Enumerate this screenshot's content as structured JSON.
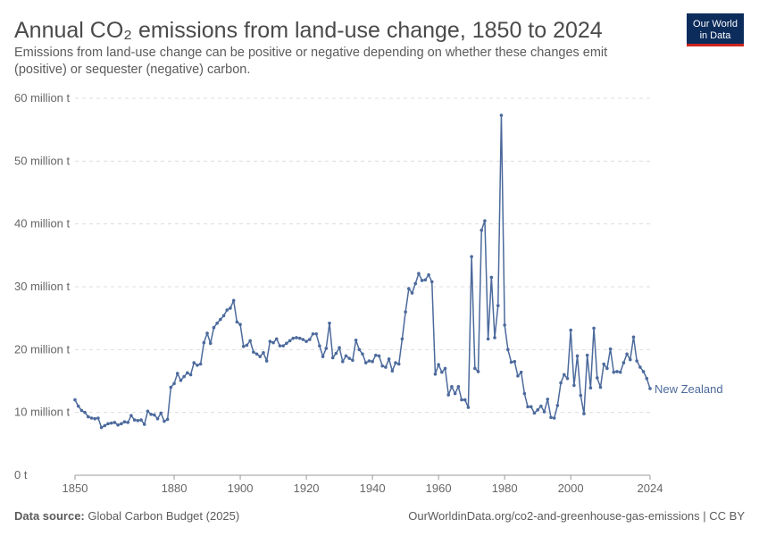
{
  "chart_data": {
    "type": "line",
    "title": "Annual CO₂ emissions from land-use change, 1850 to 2024",
    "subtitle": "Emissions from land-use change can be positive or negative depending on whether these changes emit (positive) or sequester (negative) carbon.",
    "source_label": "Data source:",
    "source": "Global Carbon Budget (2025)",
    "url": "OurWorldinData.org/co2-and-greenhouse-gas-emissions | CC BY",
    "logo": [
      "Our World",
      "in Data"
    ],
    "xlim": [
      1850,
      2024
    ],
    "xticks": [
      1850,
      1880,
      1900,
      1920,
      1940,
      1960,
      1980,
      2000,
      2024
    ],
    "ylim": [
      0,
      60
    ],
    "yticks": [
      {
        "value": 0,
        "label": "0 t"
      },
      {
        "value": 10,
        "label": "10 million t"
      },
      {
        "value": 20,
        "label": "20 million t"
      },
      {
        "value": 30,
        "label": "30 million t"
      },
      {
        "value": 40,
        "label": "40 million t"
      },
      {
        "value": 50,
        "label": "50 million t"
      },
      {
        "value": 60,
        "label": "60 million t"
      }
    ],
    "grid": true,
    "x": [
      1850,
      1851,
      1852,
      1853,
      1854,
      1855,
      1856,
      1857,
      1858,
      1859,
      1860,
      1861,
      1862,
      1863,
      1864,
      1865,
      1866,
      1867,
      1868,
      1869,
      1870,
      1871,
      1872,
      1873,
      1874,
      1875,
      1876,
      1877,
      1878,
      1879,
      1880,
      1881,
      1882,
      1883,
      1884,
      1885,
      1886,
      1887,
      1888,
      1889,
      1890,
      1891,
      1892,
      1893,
      1894,
      1895,
      1896,
      1897,
      1898,
      1899,
      1900,
      1901,
      1902,
      1903,
      1904,
      1905,
      1906,
      1907,
      1908,
      1909,
      1910,
      1911,
      1912,
      1913,
      1914,
      1915,
      1916,
      1917,
      1918,
      1919,
      1920,
      1921,
      1922,
      1923,
      1924,
      1925,
      1926,
      1927,
      1928,
      1929,
      1930,
      1931,
      1932,
      1933,
      1934,
      1935,
      1936,
      1937,
      1938,
      1939,
      1940,
      1941,
      1942,
      1943,
      1944,
      1945,
      1946,
      1947,
      1948,
      1949,
      1950,
      1951,
      1952,
      1953,
      1954,
      1955,
      1956,
      1957,
      1958,
      1959,
      1960,
      1961,
      1962,
      1963,
      1964,
      1965,
      1966,
      1967,
      1968,
      1969,
      1970,
      1971,
      1972,
      1973,
      1974,
      1975,
      1976,
      1977,
      1978,
      1979,
      1980,
      1981,
      1982,
      1983,
      1984,
      1985,
      1986,
      1987,
      1988,
      1989,
      1990,
      1991,
      1992,
      1993,
      1994,
      1995,
      1996,
      1997,
      1998,
      1999,
      2000,
      2001,
      2002,
      2003,
      2004,
      2005,
      2006,
      2007,
      2008,
      2009,
      2010,
      2011,
      2012,
      2013,
      2014,
      2015,
      2016,
      2017,
      2018,
      2019,
      2020,
      2021,
      2022,
      2023,
      2024
    ],
    "series": [
      {
        "name": "New Zealand",
        "color": "#4c6a9c",
        "values": [
          12.0,
          11.0,
          10.3,
          10.0,
          9.3,
          9.1,
          9.0,
          9.1,
          7.6,
          7.9,
          8.2,
          8.3,
          8.4,
          8.0,
          8.2,
          8.5,
          8.4,
          9.5,
          8.8,
          8.7,
          8.8,
          8.1,
          10.2,
          9.7,
          9.6,
          9.0,
          9.9,
          8.6,
          8.9,
          14.0,
          14.6,
          16.2,
          15.1,
          15.7,
          16.3,
          16.0,
          17.9,
          17.5,
          17.7,
          21.1,
          22.6,
          21.0,
          23.5,
          24.2,
          24.8,
          25.4,
          26.3,
          26.6,
          27.8,
          24.4,
          24.0,
          20.5,
          20.7,
          21.4,
          19.6,
          19.3,
          18.9,
          19.5,
          18.2,
          21.3,
          21.1,
          21.7,
          20.6,
          20.6,
          21.0,
          21.4,
          21.8,
          21.9,
          21.8,
          21.6,
          21.3,
          21.6,
          22.5,
          22.5,
          20.6,
          18.9,
          20.2,
          24.2,
          18.7,
          19.4,
          20.3,
          18.1,
          19.0,
          18.6,
          18.3,
          21.5,
          20.0,
          19.3,
          17.9,
          18.2,
          18.1,
          19.1,
          19.0,
          17.4,
          17.2,
          18.5,
          16.6,
          17.9,
          17.7,
          21.7,
          26.0,
          29.7,
          29.0,
          30.5,
          32.1,
          31.0,
          31.1,
          31.9,
          30.8,
          16.1,
          17.6,
          16.4,
          17.0,
          12.8,
          14.1,
          13.0,
          14.1,
          12.0,
          12.0,
          10.8,
          34.8,
          17.0,
          16.5,
          39.0,
          40.5,
          21.7,
          31.5,
          21.9,
          27.0,
          57.3,
          23.9,
          20.0,
          18.0,
          18.1,
          15.8,
          16.4,
          13.0,
          10.9,
          10.9,
          9.9,
          10.4,
          11.0,
          10.1,
          12.1,
          9.2,
          9.1,
          11.1,
          14.7,
          16.0,
          15.4,
          23.1,
          14.3,
          19.0,
          12.7,
          9.8,
          19.1,
          13.9,
          23.4,
          15.5,
          14.0,
          17.7,
          17.0,
          20.1,
          16.4,
          16.5,
          16.4,
          17.9,
          19.3,
          18.4,
          22.0,
          18.2,
          17.2,
          16.5,
          15.4,
          13.8
        ]
      }
    ]
  }
}
